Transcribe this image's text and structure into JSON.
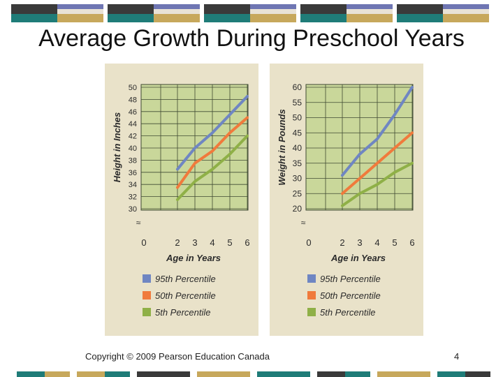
{
  "slide": {
    "title": "Average Growth During Preschool Years",
    "copyright": "Copyright © 2009 Pearson Education Canada",
    "page_number": "4"
  },
  "colors": {
    "panel_bg": "#e9e2c9",
    "plot_bg": "#c9d79a",
    "grid": "#3f4a33",
    "p95": "#6f86c2",
    "p50": "#f07a3c",
    "p5": "#8fb047",
    "bar_dark": "#3a3a3a",
    "bar_gold": "#c7a85c",
    "bar_blue": "#6f76b3",
    "bar_teal": "#1f7c78",
    "bar_light": "#e8e2d6"
  },
  "legend": [
    {
      "label": "95th Percentile",
      "color": "#6f86c2"
    },
    {
      "label": "50th Percentile",
      "color": "#f07a3c"
    },
    {
      "label": "5th Percentile",
      "color": "#8fb047"
    }
  ],
  "chart_data": [
    {
      "type": "line",
      "title": "",
      "xlabel": "Age in Years",
      "ylabel": "Height in Inches",
      "x": [
        2,
        3,
        4,
        5,
        6
      ],
      "x_ticks": [
        "0",
        "2",
        "3",
        "4",
        "5",
        "6"
      ],
      "y_ticks": [
        "30",
        "32",
        "34",
        "36",
        "38",
        "40",
        "42",
        "44",
        "46",
        "48",
        "50"
      ],
      "ylim": [
        30,
        50
      ],
      "grid": true,
      "series": [
        {
          "name": "95th Percentile",
          "values": [
            36.5,
            40,
            42.5,
            45.5,
            48.5
          ]
        },
        {
          "name": "50th Percentile",
          "values": [
            33.5,
            37.5,
            39.5,
            42.5,
            45
          ]
        },
        {
          "name": "5th Percentile",
          "values": [
            31.5,
            34.5,
            36.5,
            39,
            42
          ]
        }
      ]
    },
    {
      "type": "line",
      "title": "",
      "xlabel": "Age in Years",
      "ylabel": "Weight in Pounds",
      "x": [
        2,
        3,
        4,
        5,
        6
      ],
      "x_ticks": [
        "0",
        "2",
        "3",
        "4",
        "5",
        "6"
      ],
      "y_ticks": [
        "20",
        "25",
        "30",
        "35",
        "40",
        "45",
        "50",
        "55",
        "60"
      ],
      "ylim": [
        20,
        60
      ],
      "grid": true,
      "series": [
        {
          "name": "95th Percentile",
          "values": [
            31,
            38,
            43,
            51,
            60
          ]
        },
        {
          "name": "50th Percentile",
          "values": [
            25,
            30,
            35,
            40,
            45
          ]
        },
        {
          "name": "5th Percentile",
          "values": [
            21,
            25,
            28,
            32,
            35
          ]
        }
      ]
    }
  ]
}
